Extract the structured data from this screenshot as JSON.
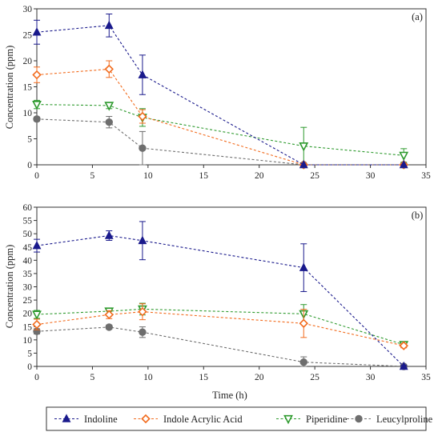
{
  "chart_data": [
    {
      "type": "line",
      "panel_label": "(a)",
      "xlabel": "",
      "ylabel": "Concentration (ppm)",
      "xlim": [
        0,
        35
      ],
      "ylim": [
        0,
        30
      ],
      "xticks": [
        0,
        5,
        10,
        15,
        20,
        25,
        30,
        35
      ],
      "yticks": [
        0,
        5,
        10,
        15,
        20,
        25,
        30
      ],
      "x": [
        0,
        6.5,
        9.5,
        24,
        33
      ],
      "series": [
        {
          "name": "Indoline",
          "values": [
            25.5,
            26.8,
            17.3,
            0,
            0
          ],
          "errors": [
            2.3,
            2.2,
            3.8,
            0,
            0
          ]
        },
        {
          "name": "Indole Acrylic Acid",
          "values": [
            17.3,
            18.4,
            9.3,
            0,
            0
          ],
          "errors": [
            1.5,
            1.6,
            1.3,
            0,
            0
          ]
        },
        {
          "name": "Piperidine",
          "values": [
            11.6,
            11.4,
            9.1,
            3.6,
            1.8
          ],
          "errors": [
            0.8,
            0.6,
            1.7,
            3.6,
            1.3
          ]
        },
        {
          "name": "Leucylproline",
          "values": [
            8.8,
            8.2,
            3.2,
            0,
            0
          ],
          "errors": [
            0.4,
            1.1,
            3.2,
            0,
            0
          ]
        }
      ]
    },
    {
      "type": "line",
      "panel_label": "(b)",
      "xlabel": "Time (h)",
      "ylabel": "Concentration (ppm)",
      "xlim": [
        0,
        35
      ],
      "ylim": [
        0,
        60
      ],
      "xticks": [
        0,
        5,
        10,
        15,
        20,
        25,
        30,
        35
      ],
      "yticks": [
        0,
        5,
        10,
        15,
        20,
        25,
        30,
        35,
        40,
        45,
        50,
        55,
        60
      ],
      "x": [
        0,
        6.5,
        9.5,
        24,
        33
      ],
      "series": [
        {
          "name": "Indoline",
          "values": [
            45.5,
            49.3,
            47.4,
            37.2,
            0
          ],
          "errors": [
            2.4,
            1.8,
            7.2,
            9.0,
            0.5
          ]
        },
        {
          "name": "Indole Acrylic Acid",
          "values": [
            15.8,
            19.5,
            20.6,
            16.2,
            7.8
          ],
          "errors": [
            2.0,
            1.5,
            3.0,
            5.3,
            0.8
          ]
        },
        {
          "name": "Piperidine",
          "values": [
            19.6,
            20.8,
            21.6,
            19.8,
            8.2
          ],
          "errors": [
            1.5,
            1.2,
            2.2,
            3.5,
            0.9
          ]
        },
        {
          "name": "Leucylproline",
          "values": [
            13.2,
            14.8,
            12.9,
            1.6,
            0
          ],
          "errors": [
            1.0,
            0.8,
            2.0,
            2.0,
            0
          ]
        }
      ]
    }
  ],
  "legend": {
    "placement": "bottom",
    "entries": [
      {
        "name": "Indoline",
        "color": "#1a1a8c",
        "marker": "triangle-up-filled"
      },
      {
        "name": "Indole Acrylic Acid",
        "color": "#f26b1d",
        "marker": "diamond-open"
      },
      {
        "name": "Piperidine",
        "color": "#2e9a2e",
        "marker": "triangle-down-open"
      },
      {
        "name": "Leucylproline",
        "color": "#6e6e6e",
        "marker": "circle-filled"
      }
    ]
  },
  "colors": {
    "Indoline": "#1a1a8c",
    "Indole Acrylic Acid": "#f26b1d",
    "Piperidine": "#2e9a2e",
    "Leucylproline": "#6e6e6e"
  }
}
